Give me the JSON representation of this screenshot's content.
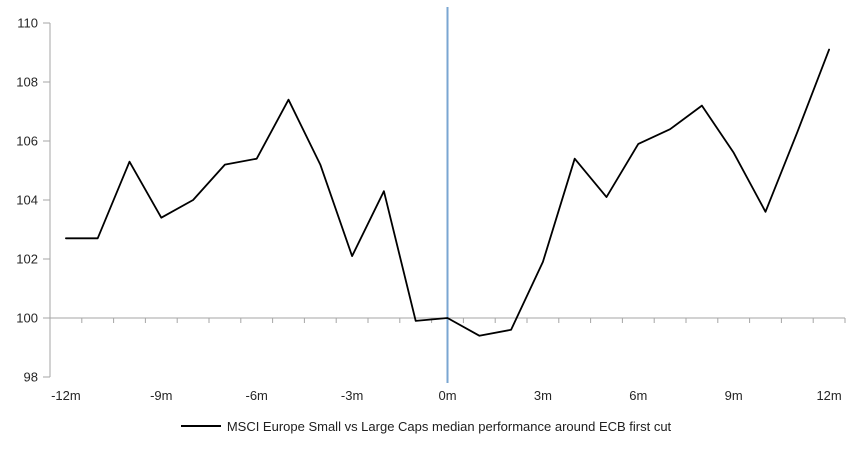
{
  "chart_data": {
    "type": "line",
    "title": "",
    "xlabel": "",
    "ylabel": "",
    "x_unit": "months relative to ECB first cut",
    "x": [
      -12,
      -11,
      -10,
      -9,
      -8,
      -7,
      -6,
      -5,
      -4,
      -3,
      -2,
      -1,
      0,
      1,
      2,
      3,
      4,
      5,
      6,
      7,
      8,
      9,
      10,
      11,
      12
    ],
    "series": [
      {
        "name": "MSCI Europe Small vs Large Caps median performance around ECB first cut",
        "color": "#000000",
        "values": [
          102.7,
          102.7,
          105.3,
          103.4,
          104.0,
          105.2,
          105.4,
          107.4,
          105.2,
          102.1,
          104.3,
          99.9,
          100.0,
          99.4,
          99.6,
          101.9,
          105.4,
          104.1,
          105.9,
          106.4,
          107.2,
          105.6,
          103.6,
          106.3,
          109.1
        ]
      }
    ],
    "ylim": [
      98,
      110.6
    ],
    "y_ticks": [
      110,
      108,
      106,
      104,
      102,
      100,
      98
    ],
    "x_ticks": [
      {
        "label": "-12m",
        "month": -12
      },
      {
        "label": "-9m",
        "month": -9
      },
      {
        "label": "-6m",
        "month": -6
      },
      {
        "label": "-3m",
        "month": -3
      },
      {
        "label": "0m",
        "month": 0
      },
      {
        "label": "3m",
        "month": 3
      },
      {
        "label": "6m",
        "month": 6
      },
      {
        "label": "9m",
        "month": 9
      },
      {
        "label": "12m",
        "month": 12
      }
    ],
    "baseline_value": 100,
    "event_line": {
      "month": 0,
      "color": "#7AA6D2",
      "meaning": "ECB first cut"
    },
    "axis_color": "#A6A6A6",
    "grid": "baseline-only",
    "legend": {
      "position": "bottom-center",
      "label": "MSCI Europe Small vs Large Caps median performance around ECB first cut"
    }
  }
}
